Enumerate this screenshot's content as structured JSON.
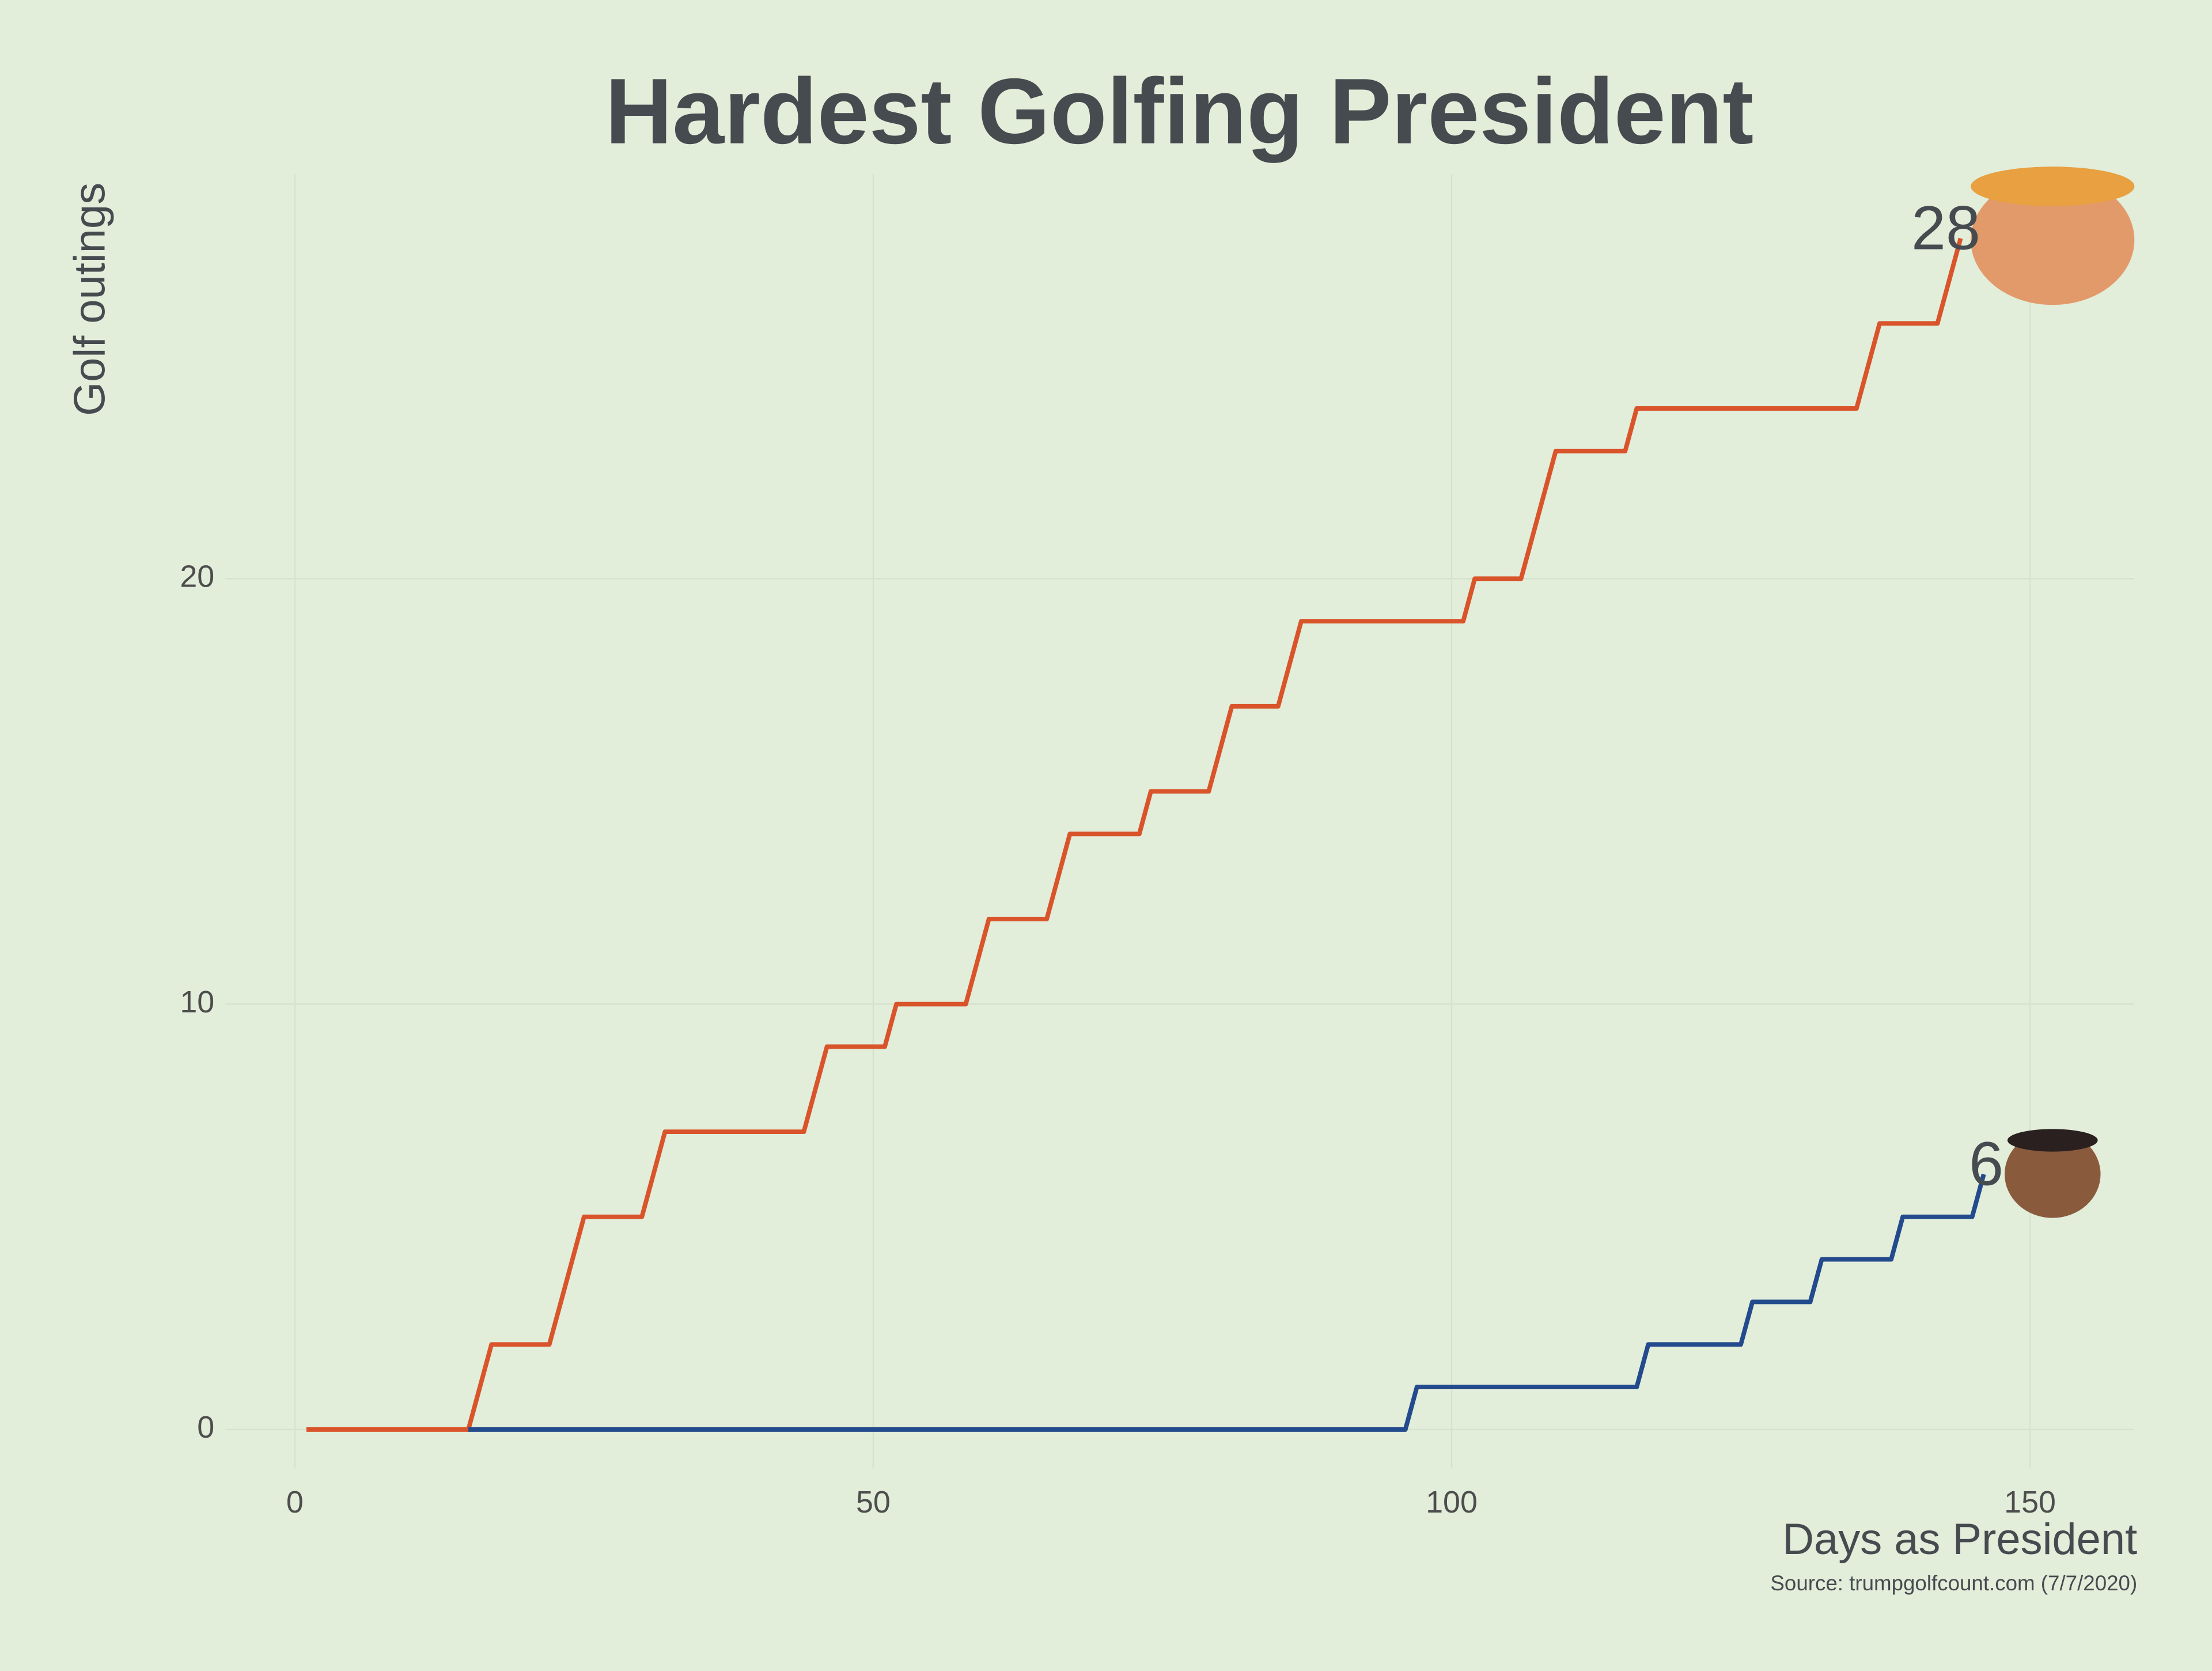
{
  "chart_data": {
    "type": "line",
    "title": "Hardest Golfing President",
    "x_label": "Days as President",
    "y_label": "Golf outings",
    "source": "Source: trumpgolfcount.com (7/7/2020)",
    "xlim": [
      -6,
      159
    ],
    "xticks": [
      0,
      50,
      100,
      150
    ],
    "ylim": [
      -0.9,
      29.5
    ],
    "yticks": [
      0,
      10,
      20
    ],
    "grid": true,
    "series": [
      {
        "color": "#d9542a",
        "x": [
          1,
          15,
          17,
          22,
          25,
          30,
          32,
          44,
          46,
          51,
          52,
          58,
          60,
          65,
          67,
          73,
          74,
          79,
          81,
          85,
          87,
          101,
          102,
          106,
          109,
          115,
          116,
          135,
          137,
          142,
          144
        ],
        "values": [
          0,
          0,
          2,
          2,
          5,
          5,
          7,
          7,
          9,
          9,
          10,
          10,
          12,
          12,
          14,
          14,
          15,
          15,
          17,
          17,
          19,
          19,
          20,
          20,
          23,
          23,
          24,
          24,
          26,
          26,
          28
        ]
      },
      {
        "color": "#234a8c",
        "x": [
          15,
          96,
          97,
          116,
          117,
          125,
          126,
          131,
          132,
          138,
          139,
          145,
          146
        ],
        "values": [
          0,
          0,
          1,
          1,
          2,
          2,
          3,
          3,
          4,
          4,
          5,
          5,
          6
        ]
      }
    ]
  }
}
